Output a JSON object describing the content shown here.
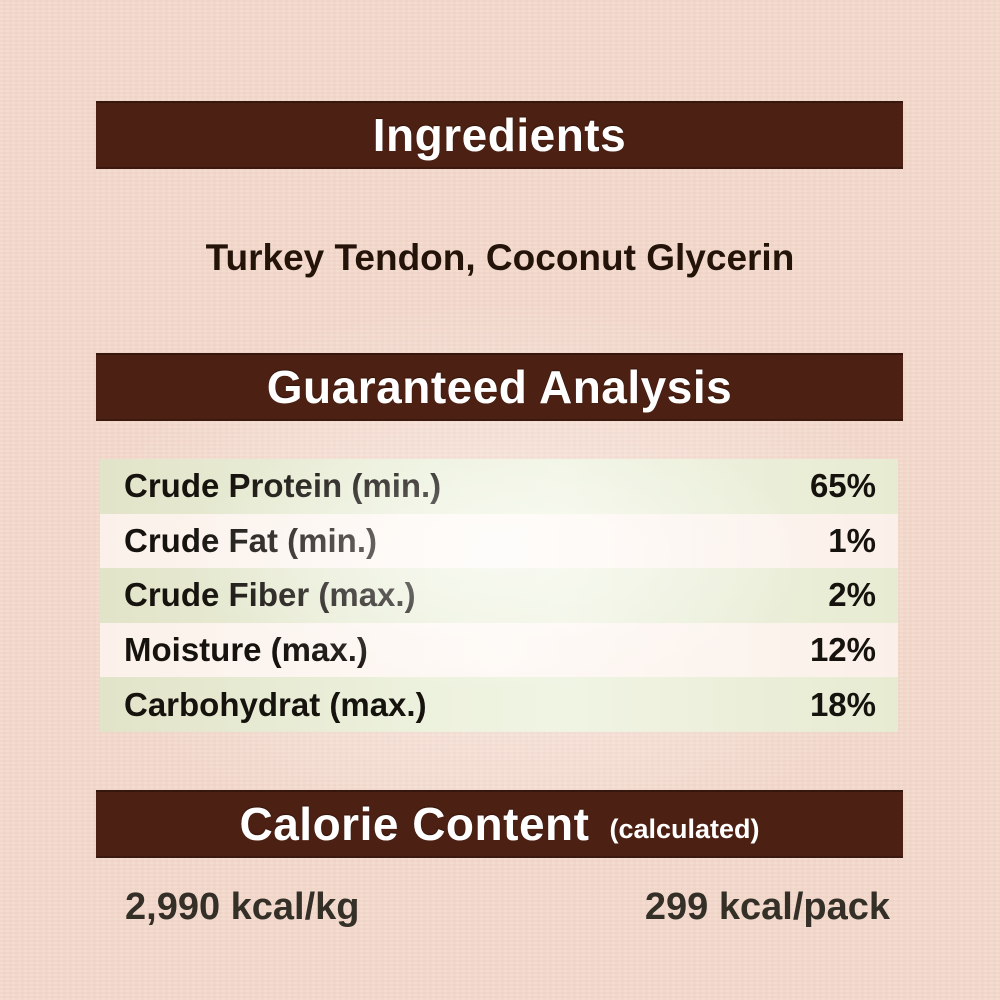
{
  "page": {
    "background_color": "#f3d9cc",
    "bar_color": "#4c2012",
    "bar_text_color": "#ffffff",
    "row_green_color": "#e9edd6",
    "row_light_color": "#fdf6f0",
    "body_text_color": "#16120e"
  },
  "ingredients": {
    "title": "Ingredients",
    "list": "Turkey Tendon, Coconut Glycerin"
  },
  "guaranteed_analysis": {
    "title": "Guaranteed Analysis",
    "rows": [
      {
        "label": "Crude Protein (min.)",
        "value": "65%"
      },
      {
        "label": "Crude Fat (min.)",
        "value": "1%"
      },
      {
        "label": "Crude Fiber (max.)",
        "value": "2%"
      },
      {
        "label": "Moisture (max.)",
        "value": "12%"
      },
      {
        "label": "Carbohydrat (max.)",
        "value": "18%"
      }
    ]
  },
  "calorie_content": {
    "title": "Calorie Content",
    "subtitle": "(calculated)",
    "per_kg": "2,990 kcal/kg",
    "per_pack": "299 kcal/pack"
  }
}
